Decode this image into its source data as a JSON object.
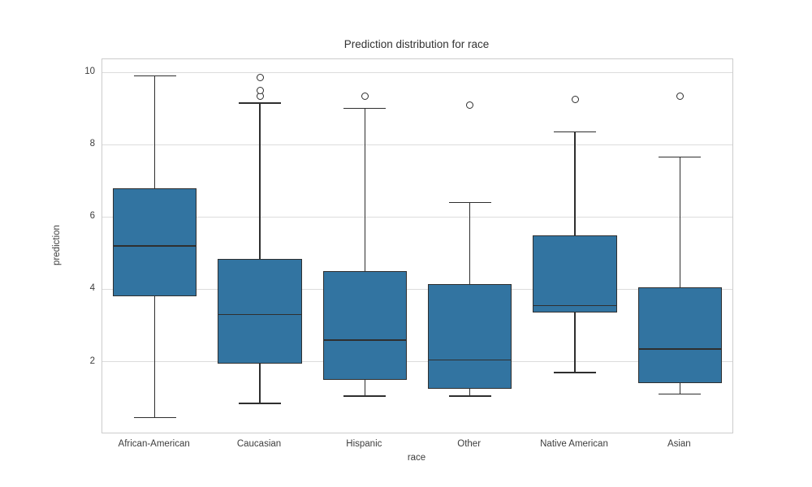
{
  "chart_data": {
    "type": "box",
    "title": "Prediction distribution for race",
    "xlabel": "race",
    "ylabel": "prediction",
    "categories": [
      "African-American",
      "Caucasian",
      "Hispanic",
      "Other",
      "Native American",
      "Asian"
    ],
    "yticks": [
      2,
      4,
      6,
      8,
      10
    ],
    "ylim": [
      0.04,
      10.36
    ],
    "grid": true,
    "legend": "none",
    "boxes": [
      {
        "category": "African-American",
        "whisker_low": 0.45,
        "q1": 3.8,
        "median": 5.2,
        "q3": 6.8,
        "whisker_high": 9.9,
        "outliers": []
      },
      {
        "category": "Caucasian",
        "whisker_low": 0.85,
        "q1": 1.95,
        "median": 3.3,
        "q3": 4.85,
        "whisker_high": 9.15,
        "outliers": [
          9.35,
          9.5,
          9.85
        ]
      },
      {
        "category": "Hispanic",
        "whisker_low": 1.05,
        "q1": 1.5,
        "median": 2.6,
        "q3": 4.5,
        "whisker_high": 9.0,
        "outliers": [
          9.35
        ]
      },
      {
        "category": "Other",
        "whisker_low": 1.05,
        "q1": 1.25,
        "median": 2.05,
        "q3": 4.15,
        "whisker_high": 6.4,
        "outliers": [
          9.1
        ]
      },
      {
        "category": "Native American",
        "whisker_low": 1.7,
        "q1": 3.35,
        "median": 3.55,
        "q3": 5.5,
        "whisker_high": 8.35,
        "outliers": [
          9.25
        ]
      },
      {
        "category": "Asian",
        "whisker_low": 1.1,
        "q1": 1.4,
        "median": 2.35,
        "q3": 4.05,
        "whisker_high": 7.65,
        "outliers": [
          9.35
        ]
      }
    ],
    "colors": {
      "box_fill": "#3274a1",
      "line": "#2f2f2f",
      "grid": "#dcdcdc",
      "border": "#cccccc",
      "text": "#3d3d3d"
    }
  }
}
